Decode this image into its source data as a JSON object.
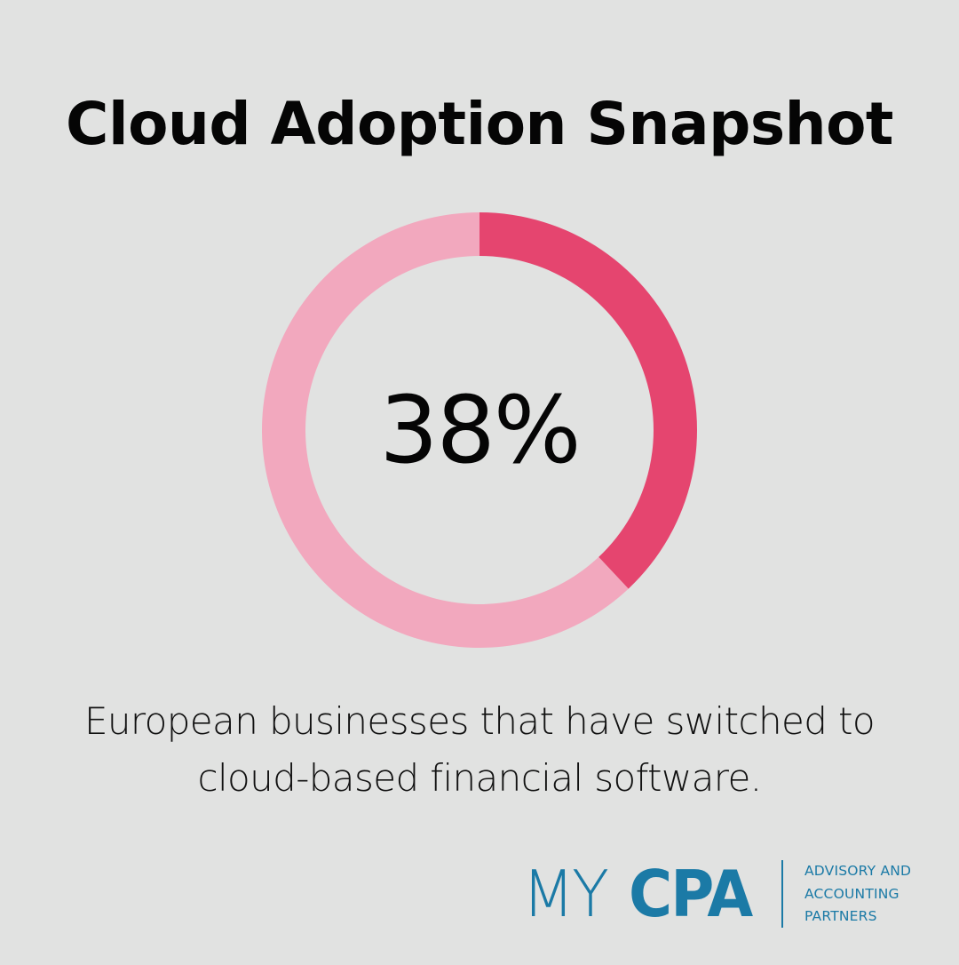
{
  "title": "Cloud Adoption Snapshot",
  "center_label": "38%",
  "caption": {
    "line1": "European businesses that have switched to",
    "line2": "cloud-based financial software."
  },
  "logo": {
    "my": "MY",
    "cpa": "CPA",
    "tagline": [
      "ADVISORY AND",
      "ACCOUNTING",
      "PARTNERS"
    ],
    "color": "#1b7aa6"
  },
  "colors": {
    "background": "#e1e2e1",
    "highlight": "#e5456f",
    "remainder": "#f2a8be"
  },
  "chart_data": {
    "type": "pie",
    "categories": [
      "",
      ""
    ],
    "values": [
      38,
      62
    ],
    "title": "Cloud Adoption Snapshot"
  }
}
